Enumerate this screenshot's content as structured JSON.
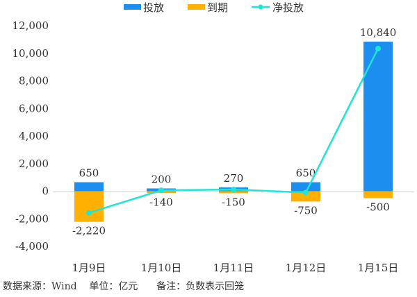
{
  "chart_data": {
    "type": "bar",
    "title": "",
    "xlabel": "",
    "ylabel": "",
    "ylim": [
      -4000,
      12000
    ],
    "yticks": [
      12000,
      10000,
      8000,
      6000,
      4000,
      2000,
      0,
      -2000,
      -4000
    ],
    "ytick_labels": [
      "12,000",
      "10,000",
      "8,000",
      "6,000",
      "4,000",
      "2,000",
      "0",
      "-2,000",
      "-4,000"
    ],
    "categories": [
      "1月9日",
      "1月10日",
      "1月11日",
      "1月12日",
      "1月15日"
    ],
    "series": [
      {
        "name": "投放",
        "type": "bar",
        "color": "#1b8ef0",
        "values": [
          650,
          200,
          270,
          650,
          10840
        ],
        "labels": [
          "650",
          "200",
          "270",
          "650",
          "10,840"
        ]
      },
      {
        "name": "到期",
        "type": "bar",
        "color": "#ffb000",
        "values": [
          -2220,
          -140,
          -150,
          -750,
          -500
        ],
        "labels": [
          "-2,220",
          "-140",
          "-150",
          "-750",
          "-500"
        ]
      },
      {
        "name": "净投放",
        "type": "line",
        "color": "#1ee6d6",
        "values": [
          -1570,
          60,
          120,
          -100,
          10340
        ]
      }
    ],
    "legend": "top",
    "grid": false
  },
  "footer": "数据来源：Wind    单位：亿元      备注：负数表示回笼"
}
